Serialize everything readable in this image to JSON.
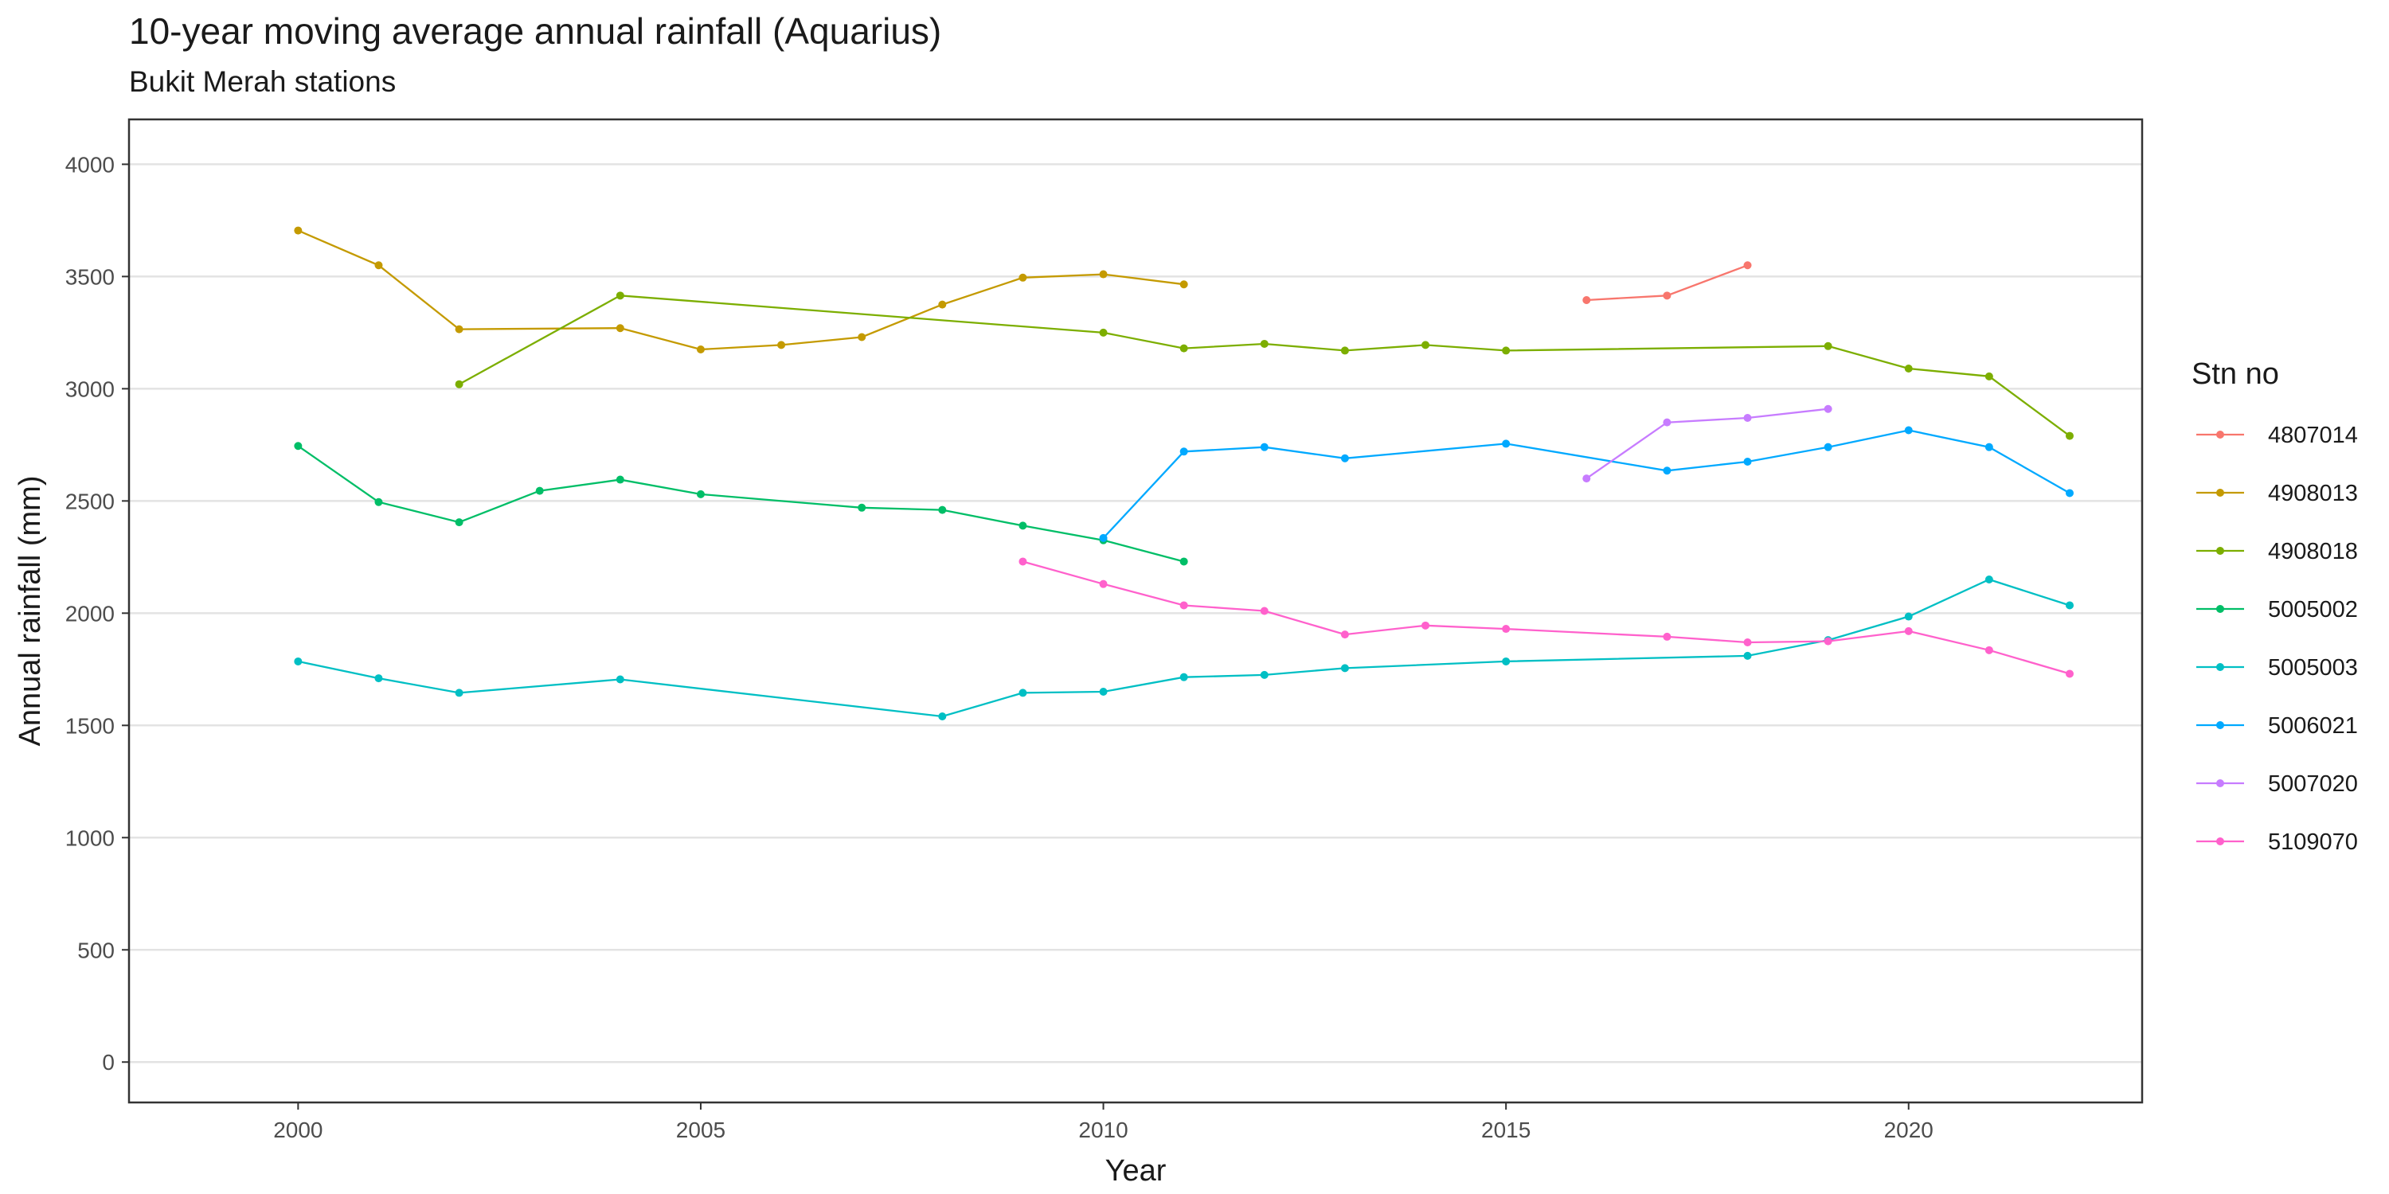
{
  "chart_data": {
    "type": "line",
    "title": "10-year moving average annual rainfall (Aquarius)",
    "subtitle": "Bukit Merah stations",
    "xlabel": "Year",
    "ylabel": "Annual rainfall (mm)",
    "xlim": [
      1997.9,
      2022.9
    ],
    "ylim": [
      -180,
      4200
    ],
    "x_ticks": [
      2000,
      2005,
      2010,
      2015,
      2020
    ],
    "y_ticks": [
      0,
      500,
      1000,
      1500,
      2000,
      2500,
      3000,
      3500,
      4000
    ],
    "grid": "horizontal",
    "legend": {
      "title": "Stn no",
      "position": "right"
    },
    "series": [
      {
        "name": "4807014",
        "color": "#F8766D",
        "points": [
          [
            2016,
            3395
          ],
          [
            2017,
            3415
          ],
          [
            2018,
            3550
          ]
        ]
      },
      {
        "name": "4908013",
        "color": "#C49A00",
        "points": [
          [
            2000,
            3705
          ],
          [
            2001,
            3550
          ],
          [
            2002,
            3265
          ],
          [
            2004,
            3270
          ],
          [
            2005,
            3175
          ],
          [
            2006,
            3195
          ],
          [
            2007,
            3230
          ],
          [
            2008,
            3375
          ],
          [
            2009,
            3495
          ],
          [
            2010,
            3510
          ],
          [
            2011,
            3465
          ]
        ]
      },
      {
        "name": "4908018",
        "color": "#7CAE00",
        "points": [
          [
            2002,
            3020
          ],
          [
            2004,
            3415
          ],
          [
            2010,
            3250
          ],
          [
            2011,
            3180
          ],
          [
            2012,
            3200
          ],
          [
            2013,
            3170
          ],
          [
            2014,
            3195
          ],
          [
            2015,
            3170
          ],
          [
            2019,
            3190
          ],
          [
            2020,
            3090
          ],
          [
            2021,
            3055
          ],
          [
            2022,
            2790
          ]
        ]
      },
      {
        "name": "5005002",
        "color": "#00BE67",
        "points": [
          [
            2000,
            2745
          ],
          [
            2001,
            2495
          ],
          [
            2002,
            2405
          ],
          [
            2003,
            2545
          ],
          [
            2004,
            2595
          ],
          [
            2005,
            2530
          ],
          [
            2007,
            2470
          ],
          [
            2008,
            2460
          ],
          [
            2009,
            2390
          ],
          [
            2010,
            2325
          ],
          [
            2011,
            2230
          ]
        ]
      },
      {
        "name": "5005003",
        "color": "#00BFC4",
        "points": [
          [
            2000,
            1785
          ],
          [
            2001,
            1710
          ],
          [
            2002,
            1645
          ],
          [
            2004,
            1705
          ],
          [
            2008,
            1540
          ],
          [
            2009,
            1645
          ],
          [
            2010,
            1650
          ],
          [
            2011,
            1715
          ],
          [
            2012,
            1725
          ],
          [
            2013,
            1755
          ],
          [
            2015,
            1785
          ],
          [
            2018,
            1810
          ],
          [
            2019,
            1880
          ],
          [
            2020,
            1985
          ],
          [
            2021,
            2150
          ],
          [
            2022,
            2035
          ]
        ]
      },
      {
        "name": "5006021",
        "color": "#00A9FF",
        "points": [
          [
            2010,
            2335
          ],
          [
            2011,
            2720
          ],
          [
            2012,
            2740
          ],
          [
            2013,
            2690
          ],
          [
            2015,
            2755
          ],
          [
            2017,
            2635
          ],
          [
            2018,
            2675
          ],
          [
            2019,
            2740
          ],
          [
            2020,
            2815
          ],
          [
            2021,
            2740
          ],
          [
            2022,
            2535
          ]
        ]
      },
      {
        "name": "5007020",
        "color": "#C77CFF",
        "points": [
          [
            2016,
            2600
          ],
          [
            2017,
            2850
          ],
          [
            2018,
            2870
          ],
          [
            2019,
            2910
          ]
        ]
      },
      {
        "name": "5109070",
        "color": "#FF61CC",
        "points": [
          [
            2009,
            2230
          ],
          [
            2010,
            2130
          ],
          [
            2011,
            2035
          ],
          [
            2012,
            2010
          ],
          [
            2013,
            1905
          ],
          [
            2014,
            1945
          ],
          [
            2015,
            1930
          ],
          [
            2017,
            1895
          ],
          [
            2018,
            1870
          ],
          [
            2019,
            1875
          ],
          [
            2020,
            1920
          ],
          [
            2021,
            1835
          ],
          [
            2022,
            1730
          ]
        ]
      }
    ]
  }
}
